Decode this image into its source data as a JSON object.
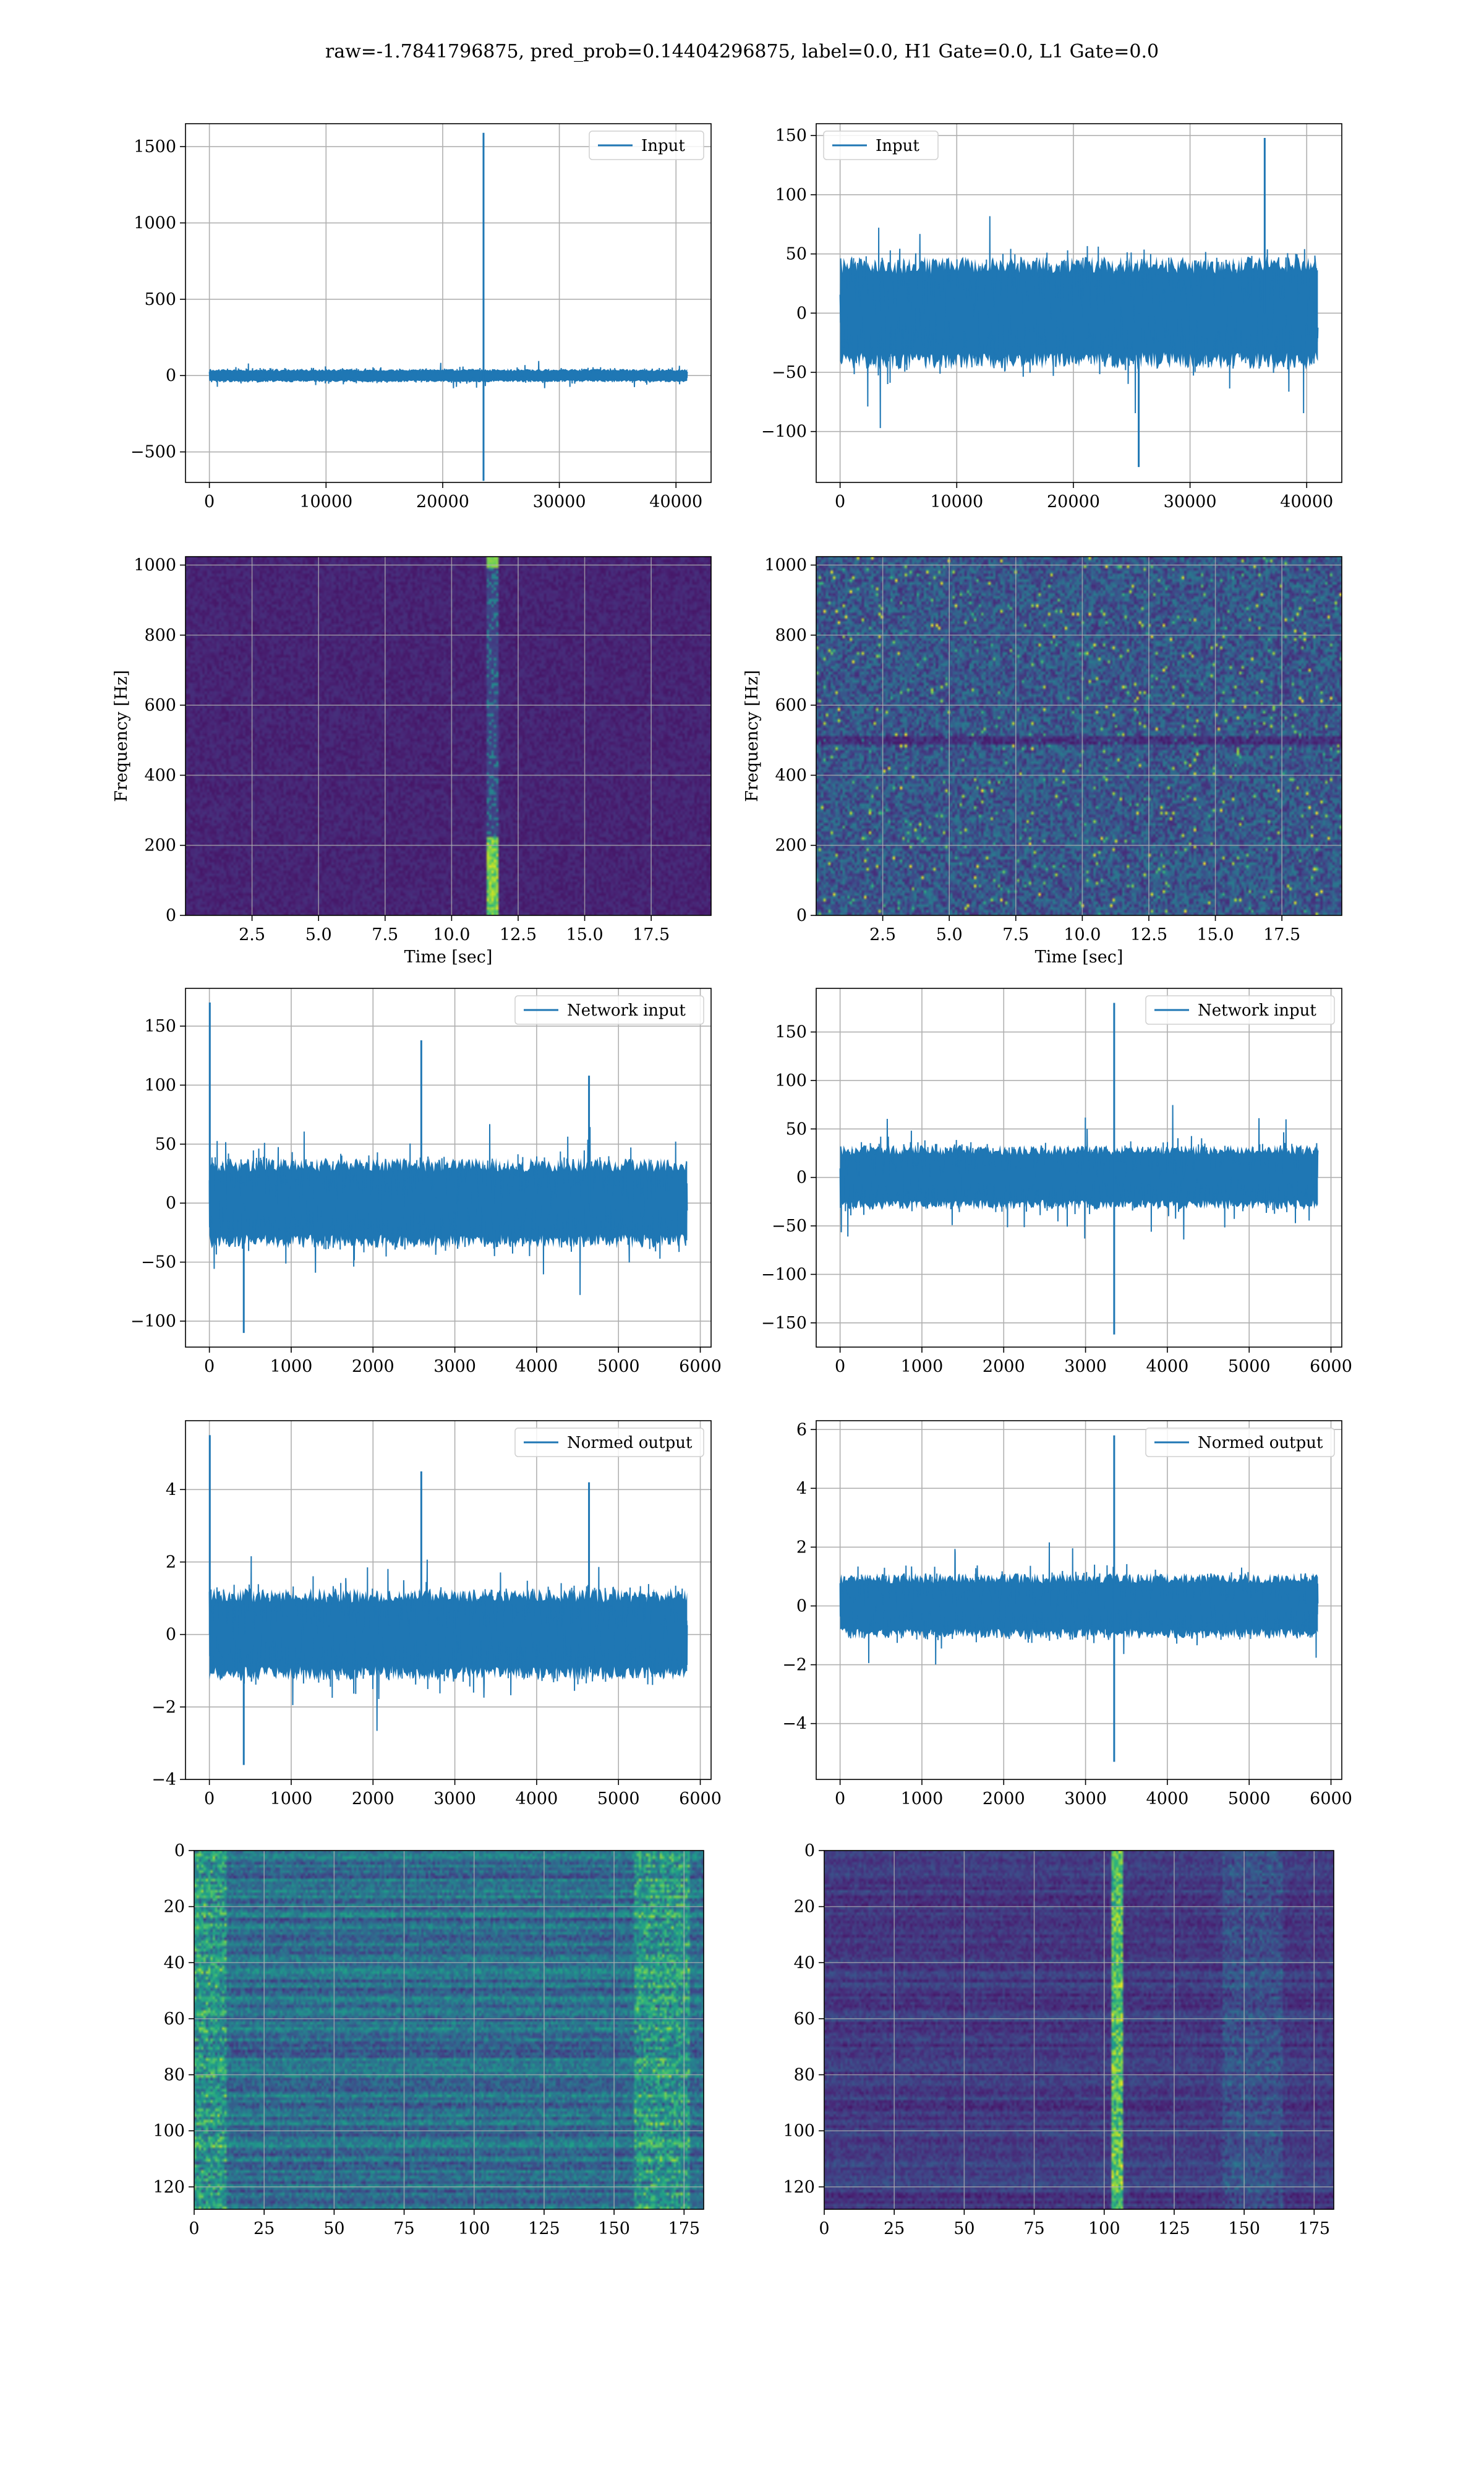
{
  "figure": {
    "suptitle": "raw=-1.7841796875, pred_prob=0.14404296875, label=0.0, H1 Gate=0.0, L1 Gate=0.0",
    "line_color": "#1f77b4",
    "colormap": "viridis"
  },
  "chart_data": [
    {
      "id": "r0c0",
      "type": "line",
      "legend": "Input",
      "xlim": [
        -2048,
        43008
      ],
      "ylim": [
        -700,
        1650
      ],
      "xticks": [
        0,
        10000,
        20000,
        30000,
        40000
      ],
      "yticks": [
        -500,
        0,
        500,
        1000,
        1500
      ],
      "x_range": [
        0,
        40960
      ],
      "noise_amplitude": 55,
      "spikes": [
        {
          "x": 23500,
          "y": 1590
        },
        {
          "x": 23500,
          "y": -690
        }
      ],
      "grid": true,
      "legend_loc": "upper right"
    },
    {
      "id": "r0c1",
      "type": "line",
      "legend": "Input",
      "xlim": [
        -2048,
        43008
      ],
      "ylim": [
        -143,
        160
      ],
      "xticks": [
        0,
        10000,
        20000,
        30000,
        40000
      ],
      "yticks": [
        -100,
        -50,
        0,
        50,
        100,
        150
      ],
      "x_range": [
        0,
        40960
      ],
      "noise_amplitude": 60,
      "spikes": [
        {
          "x": 36400,
          "y": 148
        },
        {
          "x": 25600,
          "y": -130
        }
      ],
      "grid": true,
      "legend_loc": "upper left"
    },
    {
      "id": "r1c0",
      "type": "heatmap",
      "xlim": [
        0,
        19.75
      ],
      "ylim": [
        0,
        1024
      ],
      "xticks": [
        2.5,
        5.0,
        7.5,
        10.0,
        12.5,
        15.0,
        17.5
      ],
      "yticks": [
        0,
        200,
        400,
        600,
        800,
        1000
      ],
      "xlabel": "Time [sec]",
      "ylabel": "Frequency [Hz]",
      "feature": "vertical chirp near 11.5 sec",
      "grid": true
    },
    {
      "id": "r1c1",
      "type": "heatmap",
      "xlim": [
        0,
        19.75
      ],
      "ylim": [
        0,
        1024
      ],
      "xticks": [
        2.5,
        5.0,
        7.5,
        10.0,
        12.5,
        15.0,
        17.5
      ],
      "yticks": [
        0,
        200,
        400,
        600,
        800,
        1000
      ],
      "xlabel": "Time [sec]",
      "ylabel": "Frequency [Hz]",
      "feature": "broadband noise",
      "grid": true
    },
    {
      "id": "r2c0",
      "type": "line",
      "legend": "Network input",
      "xlim": [
        -292,
        6132
      ],
      "ylim": [
        -122,
        182
      ],
      "xticks": [
        0,
        1000,
        2000,
        3000,
        4000,
        5000,
        6000
      ],
      "yticks": [
        -100,
        -50,
        0,
        50,
        100,
        150
      ],
      "x_range": [
        0,
        5840
      ],
      "noise_amplitude": 48,
      "spikes": [
        {
          "x": 5,
          "y": 170
        },
        {
          "x": 2590,
          "y": 138
        },
        {
          "x": 420,
          "y": -110
        },
        {
          "x": 4640,
          "y": 108
        }
      ],
      "grid": true,
      "legend_loc": "upper right"
    },
    {
      "id": "r2c1",
      "type": "line",
      "legend": "Network input",
      "xlim": [
        -292,
        6132
      ],
      "ylim": [
        -175,
        195
      ],
      "xticks": [
        0,
        1000,
        2000,
        3000,
        4000,
        5000,
        6000
      ],
      "yticks": [
        -150,
        -100,
        -50,
        0,
        50,
        100,
        150
      ],
      "x_range": [
        0,
        5840
      ],
      "noise_amplitude": 42,
      "spikes": [
        {
          "x": 3350,
          "y": 180
        },
        {
          "x": 3350,
          "y": -162
        }
      ],
      "grid": true,
      "legend_loc": "upper right"
    },
    {
      "id": "r3c0",
      "type": "line",
      "legend": "Normed output",
      "xlim": [
        -292,
        6132
      ],
      "ylim": [
        -4.0,
        5.9
      ],
      "xticks": [
        0,
        1000,
        2000,
        3000,
        4000,
        5000,
        6000
      ],
      "yticks": [
        -4,
        -2,
        0,
        2,
        4
      ],
      "x_range": [
        0,
        5840
      ],
      "noise_amplitude": 1.6,
      "spikes": [
        {
          "x": 5,
          "y": 5.5
        },
        {
          "x": 2590,
          "y": 4.5
        },
        {
          "x": 420,
          "y": -3.6
        },
        {
          "x": 4640,
          "y": 4.2
        }
      ],
      "grid": true,
      "legend_loc": "upper right"
    },
    {
      "id": "r3c1",
      "type": "line",
      "legend": "Normed output",
      "xlim": [
        -292,
        6132
      ],
      "ylim": [
        -5.9,
        6.3
      ],
      "xticks": [
        0,
        1000,
        2000,
        3000,
        4000,
        5000,
        6000
      ],
      "yticks": [
        -4,
        -2,
        0,
        2,
        4,
        6
      ],
      "x_range": [
        0,
        5840
      ],
      "noise_amplitude": 1.4,
      "spikes": [
        {
          "x": 3350,
          "y": 5.8
        },
        {
          "x": 3350,
          "y": -5.3
        }
      ],
      "grid": true,
      "legend_loc": "upper right"
    },
    {
      "id": "r4c0",
      "type": "heatmap",
      "xlim": [
        0,
        182
      ],
      "ylim": [
        128,
        0
      ],
      "xticks": [
        0,
        25,
        50,
        75,
        100,
        125,
        150,
        175
      ],
      "yticks": [
        0,
        20,
        40,
        60,
        80,
        100,
        120
      ],
      "feature": "row-banded activations, brighter near columns 0-10 and 160-175",
      "grid": true
    },
    {
      "id": "r4c1",
      "type": "heatmap",
      "xlim": [
        0,
        182
      ],
      "ylim": [
        128,
        0
      ],
      "xticks": [
        0,
        25,
        50,
        75,
        100,
        125,
        150,
        175
      ],
      "yticks": [
        0,
        20,
        40,
        60,
        80,
        100,
        120
      ],
      "feature": "vertical bright band near column 104",
      "grid": true
    }
  ]
}
